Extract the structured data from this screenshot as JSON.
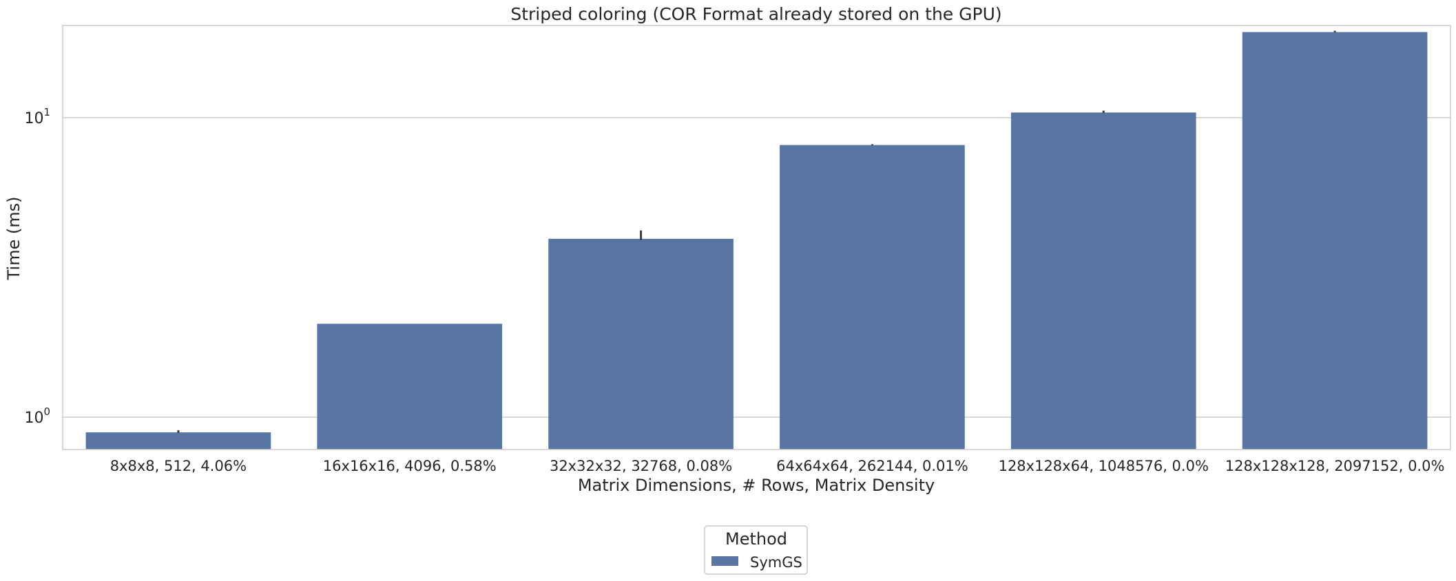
{
  "chart_data": {
    "type": "bar",
    "title": "Striped coloring (COR Format already stored on the GPU)",
    "xlabel": "Matrix Dimensions, # Rows, Matrix Density",
    "ylabel": "Time (ms)",
    "yscale": "log",
    "ylim": [
      0.78,
      20.3
    ],
    "grid": "y",
    "categories": [
      "8x8x8, 512, 4.06%",
      "16x16x16, 4096, 0.58%",
      "32x32x32, 32768, 0.08%",
      "64x64x64, 262144, 0.01%",
      "128x128x64, 1048576, 0.0%",
      "128x128x128, 2097152, 0.0%"
    ],
    "series": [
      {
        "name": "SymGS",
        "color": "#5975a4",
        "values": [
          0.89,
          2.05,
          3.94,
          8.1,
          10.4,
          19.3
        ],
        "err_low": [
          0.886,
          2.05,
          3.9,
          8.07,
          10.35,
          19.25
        ],
        "err_high": [
          0.905,
          2.05,
          4.2,
          8.15,
          10.55,
          19.5
        ]
      }
    ],
    "yticks": [
      {
        "value": 1,
        "base": "10",
        "exp": "0"
      },
      {
        "value": 10,
        "base": "10",
        "exp": "1"
      }
    ],
    "legend": {
      "title": "Method",
      "position": "bottom-center"
    }
  }
}
